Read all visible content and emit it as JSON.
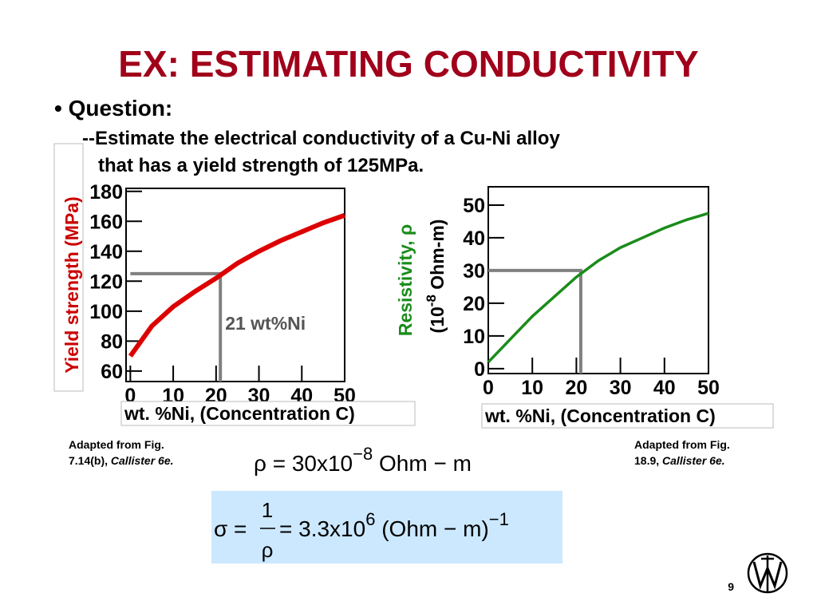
{
  "title": "EX:  ESTIMATING CONDUCTIVITY",
  "bullet": "• Question:",
  "question_lines": [
    "--Estimate the electrical conductivity of a Cu-Ni alloy",
    "that has a yield strength of 125MPa."
  ],
  "chart_data": [
    {
      "type": "line",
      "x": [
        0,
        5,
        10,
        15,
        20,
        25,
        30,
        35,
        40,
        45,
        50
      ],
      "values": [
        70,
        90,
        103,
        113,
        122,
        132,
        140,
        147,
        153,
        159,
        164
      ],
      "color": "#dd0000",
      "xlim": [
        -1,
        50
      ],
      "ylim": [
        53,
        182
      ],
      "xticks": [
        0,
        10,
        20,
        30,
        40,
        50
      ],
      "yticks": [
        60,
        80,
        100,
        120,
        140,
        160,
        180
      ],
      "y_label": "Yield strength (MPa)",
      "y_label_color": "#cc0000",
      "x_label": "wt. %Ni, (Concentration C)",
      "guide": {
        "x": 21,
        "y": 125
      },
      "annotation": "21 wt%Ni",
      "caption": [
        "Adapted from Fig.",
        "7.14(b), ",
        "Callister 6e."
      ]
    },
    {
      "type": "line",
      "x": [
        0,
        5,
        10,
        15,
        20,
        25,
        30,
        35,
        40,
        45,
        50
      ],
      "values": [
        2,
        9,
        16,
        22,
        28,
        33,
        37,
        40,
        43,
        45.5,
        47.5
      ],
      "color": "#1a8c1a",
      "xlim": [
        0,
        50
      ],
      "ylim": [
        -1.5,
        55.6
      ],
      "xticks": [
        0,
        10,
        20,
        30,
        40,
        50
      ],
      "yticks": [
        0,
        10,
        20,
        30,
        40,
        50
      ],
      "y_label": "Resistivity, ρ",
      "y_label_color": "#1a8c1a",
      "y_label_unit": [
        "(10",
        "-8",
        " Ohm-m)"
      ],
      "x_label": "wt. %Ni, (Concentration C)",
      "guide": {
        "x": 21,
        "y": 30
      },
      "caption": [
        "Adapted from Fig.",
        "18.9, ",
        "Callister 6e."
      ]
    }
  ],
  "equation_1": [
    "ρ = 30x10",
    "−8",
    " Ohm − m"
  ],
  "equation_2": {
    "lhs": "σ =",
    "num": "1",
    "den": "ρ",
    "rhs": "= 3.3x10",
    "exp": "6",
    "unit": " (Ohm − m)",
    "unit_exp": "−1"
  },
  "page_number": "9"
}
